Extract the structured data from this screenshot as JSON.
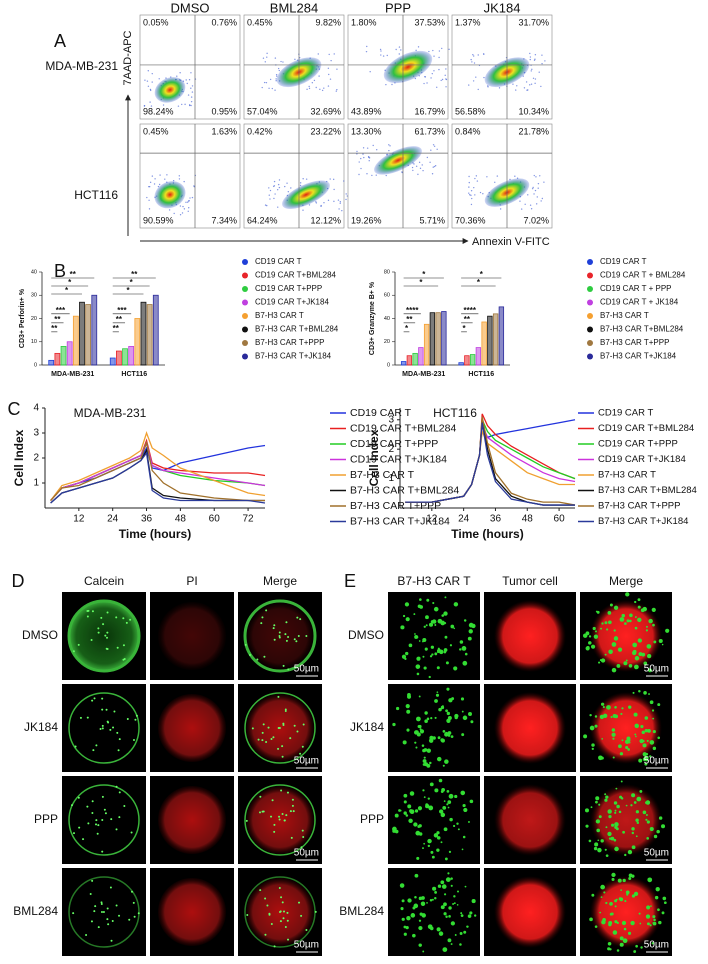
{
  "panel_a": {
    "label": "A",
    "columns": [
      "DMSO",
      "BML284",
      "PPP",
      "JK184"
    ],
    "y_axis_label": "7AAD-APC",
    "x_axis_label": "Annexin V-FITC",
    "rows": [
      {
        "label": "MDA-MB-231",
        "quadrants": [
          [
            "0.05%",
            "0.76%",
            "98.24%",
            "0.95%"
          ],
          [
            "0.45%",
            "9.82%",
            "57.04%",
            "32.69%"
          ],
          [
            "1.80%",
            "37.53%",
            "43.89%",
            "16.79%"
          ],
          [
            "1.37%",
            "31.70%",
            "56.58%",
            "10.34%"
          ]
        ]
      },
      {
        "label": "HCT116",
        "quadrants": [
          [
            "0.45%",
            "1.63%",
            "90.59%",
            "7.34%"
          ],
          [
            "0.42%",
            "23.22%",
            "64.24%",
            "12.12%"
          ],
          [
            "13.30%",
            "61.73%",
            "19.26%",
            "5.71%"
          ],
          [
            "0.84%",
            "21.78%",
            "70.36%",
            "7.02%"
          ]
        ]
      }
    ]
  },
  "panel_b": {
    "label": "B"
  },
  "panel_c": {
    "label": "C"
  },
  "chart_data": [
    {
      "type": "bar",
      "y_axis_label": "CD3+ Perforin+ %",
      "categories": [
        "MDA-MB-231",
        "HCT116"
      ],
      "ylim": [
        0,
        40
      ],
      "yticks": [
        0,
        10,
        20,
        30,
        40
      ],
      "annotations": [
        [
          "**",
          "*",
          "*",
          "***",
          "**",
          "**"
        ],
        [
          "**",
          "*",
          "*",
          "***",
          "**",
          "**"
        ]
      ],
      "series": [
        {
          "name": "CD19 CAR T",
          "color": "#1f3fd8",
          "values": [
            2,
            3
          ]
        },
        {
          "name": "CD19 CAR T+BML284",
          "color": "#e8242a",
          "values": [
            5,
            6
          ]
        },
        {
          "name": "CD19 CAR T+PPP",
          "color": "#2ecc40",
          "values": [
            8,
            7
          ]
        },
        {
          "name": "CD19 CAR T+JK184",
          "color": "#c040e0",
          "values": [
            10,
            8
          ]
        },
        {
          "name": "B7-H3 CAR T",
          "color": "#f5a030",
          "values": [
            21,
            20
          ]
        },
        {
          "name": "B7-H3 CAR T+BML284",
          "color": "#111111",
          "values": [
            27,
            27
          ]
        },
        {
          "name": "B7-H3 CAR T+PPP",
          "color": "#a07840",
          "values": [
            26,
            26
          ]
        },
        {
          "name": "B7-H3 CAR T+JK184",
          "color": "#2a2a9a",
          "values": [
            30,
            30
          ]
        }
      ]
    },
    {
      "type": "bar",
      "y_axis_label": "CD3+ Granzyme B+ %",
      "categories": [
        "MDA-MB-231",
        "HCT116"
      ],
      "ylim": [
        0,
        80
      ],
      "yticks": [
        0,
        20,
        40,
        60,
        80
      ],
      "annotations": [
        [
          "*",
          "*",
          "****",
          "**",
          "*"
        ],
        [
          "*",
          "*",
          "****",
          "**",
          "*"
        ]
      ],
      "series": [
        {
          "name": "CD19 CAR T",
          "color": "#1f3fd8",
          "values": [
            3,
            2
          ]
        },
        {
          "name": "CD19 CAR T + BML284",
          "color": "#e8242a",
          "values": [
            8,
            8
          ]
        },
        {
          "name": "CD19 CAR T + PPP",
          "color": "#2ecc40",
          "values": [
            10,
            9
          ]
        },
        {
          "name": "CD19 CAR T + JK184",
          "color": "#c040e0",
          "values": [
            15,
            15
          ]
        },
        {
          "name": "B7-H3 CAR T",
          "color": "#f5a030",
          "values": [
            35,
            37
          ]
        },
        {
          "name": "B7-H3 CAR T+BML284",
          "color": "#111111",
          "values": [
            45,
            42
          ]
        },
        {
          "name": "B7-H3 CAR T+PPP",
          "color": "#a07840",
          "values": [
            45,
            44
          ]
        },
        {
          "name": "B7-H3 CAR T+JK184",
          "color": "#2a2a9a",
          "values": [
            46,
            50
          ]
        }
      ]
    },
    {
      "type": "line",
      "title": "MDA-MB-231",
      "x_axis_label": "Time (hours)",
      "y_axis_label": "Cell Index",
      "x": [
        2,
        6,
        12,
        18,
        24,
        30,
        34,
        36,
        38,
        42,
        48,
        60,
        72,
        78
      ],
      "xlim": [
        0,
        78
      ],
      "xticks": [
        12,
        24,
        36,
        48,
        60,
        72
      ],
      "ylim": [
        0,
        4
      ],
      "yticks": [
        1,
        2,
        3,
        4
      ],
      "series": [
        {
          "name": "CD19 CAR T",
          "color": "#2233dd",
          "values": [
            0.3,
            0.8,
            1.0,
            1.2,
            1.5,
            1.8,
            2.0,
            2.4,
            1.6,
            1.5,
            1.8,
            2.1,
            2.4,
            2.5
          ]
        },
        {
          "name": "CD19 CAR T+BML284",
          "color": "#e82020",
          "values": [
            0.3,
            0.8,
            1.0,
            1.3,
            1.6,
            1.9,
            2.1,
            2.7,
            1.8,
            1.6,
            1.5,
            1.4,
            1.4,
            1.3
          ]
        },
        {
          "name": "CD19 CAR T+PPP",
          "color": "#22cc22",
          "values": [
            0.3,
            0.8,
            1.0,
            1.3,
            1.6,
            1.9,
            2.1,
            2.6,
            1.7,
            1.5,
            1.3,
            1.1,
            1.0,
            0.9
          ]
        },
        {
          "name": "CD19 CAR T+JK184",
          "color": "#cc33dd",
          "values": [
            0.3,
            0.8,
            1.0,
            1.3,
            1.6,
            1.9,
            2.1,
            2.6,
            1.7,
            1.5,
            1.4,
            1.2,
            1.0,
            0.9
          ]
        },
        {
          "name": "B7-H3 CAR T",
          "color": "#f0a030",
          "values": [
            0.3,
            0.9,
            1.1,
            1.4,
            1.7,
            2.0,
            2.3,
            3.0,
            2.4,
            2.1,
            1.6,
            1.1,
            0.6,
            0.5
          ]
        },
        {
          "name": "B7-H3 CAR T+BML284",
          "color": "#111111",
          "values": [
            0.2,
            0.6,
            0.8,
            1.0,
            1.2,
            1.6,
            1.9,
            2.3,
            0.8,
            0.5,
            0.4,
            0.3,
            0.3,
            0.3
          ]
        },
        {
          "name": "B7-H3 CAR T+PPP",
          "color": "#a0702a",
          "values": [
            0.3,
            0.8,
            0.9,
            1.2,
            1.5,
            1.8,
            2.0,
            2.6,
            1.5,
            1.0,
            0.6,
            0.4,
            0.3,
            0.3
          ]
        },
        {
          "name": "B7-H3 CAR T+JK184",
          "color": "#2a3a9a",
          "values": [
            0.2,
            0.6,
            0.8,
            1.0,
            1.2,
            1.6,
            1.9,
            2.2,
            0.7,
            0.4,
            0.3,
            0.3,
            0.3,
            0.2
          ]
        }
      ]
    },
    {
      "type": "line",
      "title": "HCT116",
      "x_axis_label": "Time (hours)",
      "y_axis_label": "Cell Index",
      "x": [
        2,
        6,
        12,
        18,
        24,
        27,
        30,
        31,
        33,
        36,
        42,
        48,
        54,
        60,
        66
      ],
      "xlim": [
        0,
        66
      ],
      "xticks": [
        12,
        24,
        36,
        48,
        60
      ],
      "ylim": [
        0,
        3.4
      ],
      "yticks": [
        1,
        2,
        3
      ],
      "series": [
        {
          "name": "CD19 CAR T",
          "color": "#2233dd",
          "values": [
            0.2,
            0.2,
            0.2,
            0.3,
            0.4,
            0.8,
            1.8,
            2.8,
            2.4,
            2.5,
            2.6,
            2.7,
            2.8,
            2.9,
            3.0
          ]
        },
        {
          "name": "CD19 CAR T+BML284",
          "color": "#e82020",
          "values": [
            0.2,
            0.2,
            0.2,
            0.3,
            0.4,
            0.8,
            1.8,
            3.2,
            2.8,
            2.5,
            2.1,
            1.8,
            1.5,
            1.2,
            1.0
          ]
        },
        {
          "name": "CD19 CAR T+PPP",
          "color": "#22cc22",
          "values": [
            0.2,
            0.2,
            0.2,
            0.3,
            0.4,
            0.8,
            1.8,
            3.0,
            2.6,
            2.3,
            2.0,
            1.7,
            1.4,
            1.2,
            1.0
          ]
        },
        {
          "name": "CD19 CAR T+JK184",
          "color": "#cc33dd",
          "values": [
            0.2,
            0.2,
            0.2,
            0.3,
            0.4,
            0.8,
            1.8,
            2.8,
            2.4,
            2.2,
            1.8,
            1.5,
            1.2,
            1.0,
            0.9
          ]
        },
        {
          "name": "B7-H3 CAR T",
          "color": "#f0a030",
          "values": [
            0.2,
            0.2,
            0.2,
            0.3,
            0.4,
            0.8,
            1.8,
            2.6,
            2.2,
            2.0,
            1.6,
            1.2,
            1.0,
            0.8,
            0.8
          ]
        },
        {
          "name": "B7-H3 CAR T+BML284",
          "color": "#111111",
          "values": [
            0.2,
            0.2,
            0.2,
            0.3,
            0.4,
            0.8,
            1.8,
            3.0,
            2.0,
            1.0,
            0.4,
            0.2,
            0.1,
            0.1,
            0.1
          ]
        },
        {
          "name": "B7-H3 CAR T+PPP",
          "color": "#a0702a",
          "values": [
            0.2,
            0.2,
            0.2,
            0.3,
            0.4,
            0.8,
            1.8,
            3.1,
            2.2,
            1.2,
            0.5,
            0.3,
            0.2,
            0.2,
            0.1
          ]
        },
        {
          "name": "B7-H3 CAR T+JK184",
          "color": "#2a3a9a",
          "values": [
            0.2,
            0.2,
            0.2,
            0.3,
            0.4,
            0.8,
            1.8,
            2.9,
            1.8,
            0.9,
            0.3,
            0.2,
            0.1,
            0.1,
            0.1
          ]
        }
      ]
    }
  ],
  "panel_d": {
    "label": "D",
    "columns": [
      "Calcein",
      "PI",
      "Merge"
    ],
    "rows": [
      "DMSO",
      "JK184",
      "PPP",
      "BML284"
    ],
    "scale_bar": "50µm"
  },
  "panel_e": {
    "label": "E",
    "columns": [
      "B7-H3 CAR T",
      "Tumor cell",
      "Merge"
    ],
    "rows": [
      "DMSO",
      "JK184",
      "PPP",
      "BML284"
    ],
    "scale_bar": "50µm"
  }
}
